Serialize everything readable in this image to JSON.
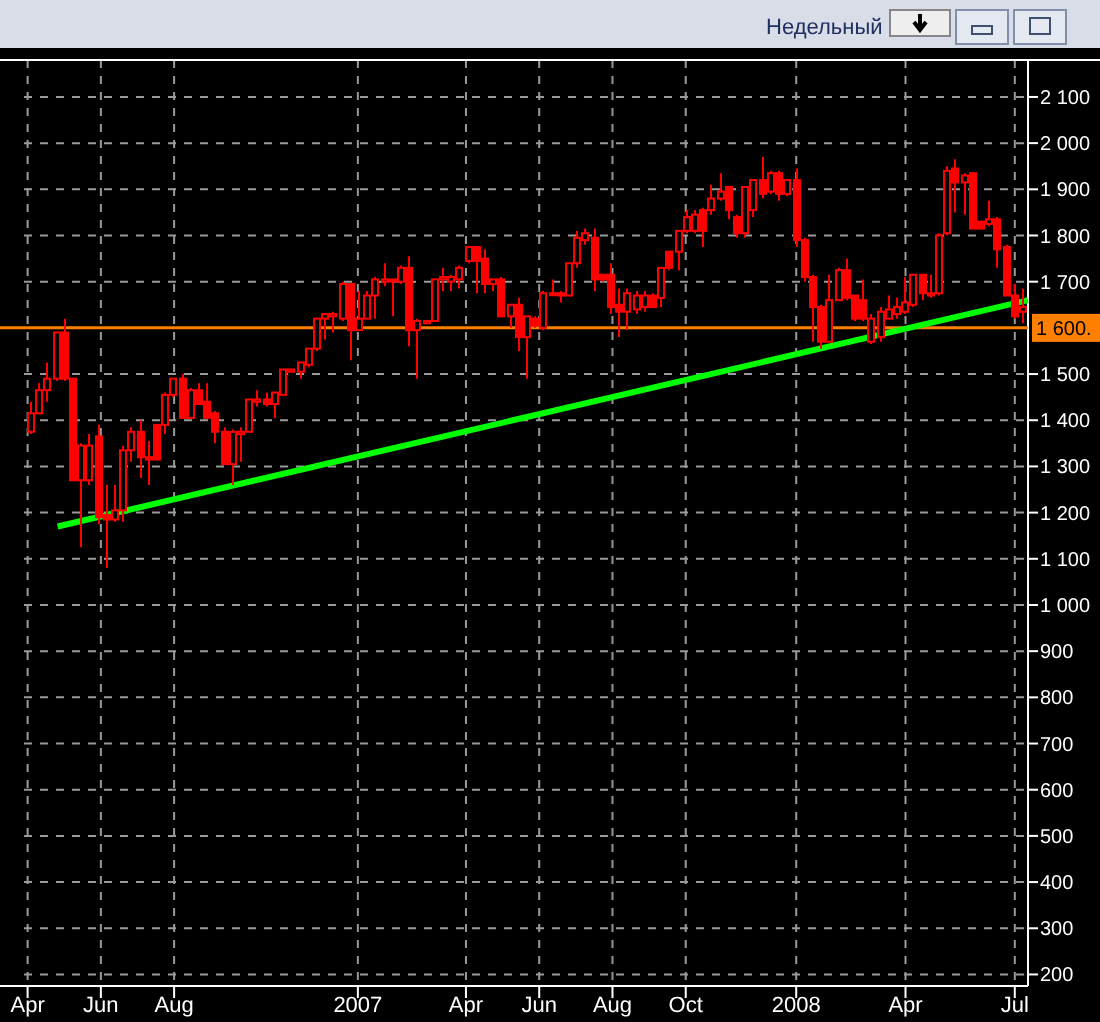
{
  "chart_data": {
    "type": "candlestick",
    "color": "#ff0000",
    "annotations": [
      "Недельный"
    ],
    "x": [
      "2006-04-03",
      "2006-04-10",
      "2006-04-17",
      "2006-04-24",
      "2006-05-01",
      "2006-05-08",
      "2006-05-15",
      "2006-05-22",
      "2006-05-29",
      "2006-06-05",
      "2006-06-12",
      "2006-06-19",
      "2006-06-26",
      "2006-07-03",
      "2006-07-10",
      "2006-07-17",
      "2006-07-24",
      "2006-07-31",
      "2006-08-07",
      "2006-08-14",
      "2006-08-21",
      "2006-08-28",
      "2006-09-04",
      "2006-09-11",
      "2006-09-18",
      "2006-09-25",
      "2006-10-02",
      "2006-10-09",
      "2006-10-16",
      "2006-10-23",
      "2006-10-30",
      "2006-11-06",
      "2006-11-13",
      "2006-11-20",
      "2006-11-27",
      "2006-12-04",
      "2006-12-11",
      "2006-12-18",
      "2006-12-25",
      "2007-01-01",
      "2007-01-08",
      "2007-01-15",
      "2007-01-22",
      "2007-01-29",
      "2007-02-05",
      "2007-02-12",
      "2007-02-19",
      "2007-02-26",
      "2007-03-05",
      "2007-03-12",
      "2007-03-19",
      "2007-03-26",
      "2007-04-02",
      "2007-04-09",
      "2007-04-16",
      "2007-04-23",
      "2007-04-30",
      "2007-05-07",
      "2007-05-14",
      "2007-05-21",
      "2007-05-28",
      "2007-06-04",
      "2007-06-11",
      "2007-06-18",
      "2007-06-25",
      "2007-07-02",
      "2007-07-09",
      "2007-07-16",
      "2007-07-23",
      "2007-07-30",
      "2007-08-06",
      "2007-08-13",
      "2007-08-20",
      "2007-08-27",
      "2007-09-03",
      "2007-09-10",
      "2007-09-17",
      "2007-09-24",
      "2007-10-01",
      "2007-10-08",
      "2007-10-15",
      "2007-10-22",
      "2007-10-29",
      "2007-11-05",
      "2007-11-12",
      "2007-11-19",
      "2007-11-26",
      "2007-12-03",
      "2007-12-10",
      "2007-12-17",
      "2007-12-24",
      "2007-12-31",
      "2008-01-07",
      "2008-01-14",
      "2008-01-21",
      "2008-01-28",
      "2008-02-04",
      "2008-02-11",
      "2008-02-18",
      "2008-02-25",
      "2008-03-03",
      "2008-03-10",
      "2008-03-17",
      "2008-03-24",
      "2008-03-31",
      "2008-04-07",
      "2008-04-14",
      "2008-04-21",
      "2008-04-28",
      "2008-05-05",
      "2008-05-12",
      "2008-05-19",
      "2008-05-26",
      "2008-06-02",
      "2008-06-09",
      "2008-06-16",
      "2008-06-23",
      "2008-06-30",
      "2008-07-07"
    ],
    "ohlc": [
      [
        1375,
        1440,
        1370,
        1415
      ],
      [
        1415,
        1480,
        1415,
        1465
      ],
      [
        1465,
        1525,
        1440,
        1490
      ],
      [
        1490,
        1590,
        1485,
        1590
      ],
      [
        1590,
        1620,
        1485,
        1490
      ],
      [
        1490,
        1490,
        1270,
        1270
      ],
      [
        1270,
        1350,
        1125,
        1345
      ],
      [
        1270,
        1370,
        1260,
        1345
      ],
      [
        1365,
        1390,
        1175,
        1190
      ],
      [
        1195,
        1260,
        1080,
        1185
      ],
      [
        1185,
        1260,
        1180,
        1205
      ],
      [
        1205,
        1345,
        1180,
        1335
      ],
      [
        1335,
        1385,
        1310,
        1375
      ],
      [
        1375,
        1400,
        1275,
        1320
      ],
      [
        1320,
        1355,
        1260,
        1315
      ],
      [
        1390,
        1390,
        1315,
        1315
      ],
      [
        1390,
        1460,
        1370,
        1455
      ],
      [
        1455,
        1490,
        1450,
        1490
      ],
      [
        1490,
        1500,
        1405,
        1405
      ],
      [
        1405,
        1470,
        1405,
        1465
      ],
      [
        1465,
        1480,
        1435,
        1435
      ],
      [
        1440,
        1480,
        1405,
        1405
      ],
      [
        1415,
        1420,
        1350,
        1375
      ],
      [
        1375,
        1385,
        1305,
        1305
      ],
      [
        1305,
        1380,
        1260,
        1375
      ],
      [
        1370,
        1385,
        1310,
        1375
      ],
      [
        1375,
        1445,
        1375,
        1445
      ],
      [
        1440,
        1465,
        1430,
        1445
      ],
      [
        1445,
        1460,
        1430,
        1435
      ],
      [
        1435,
        1460,
        1405,
        1460
      ],
      [
        1455,
        1510,
        1455,
        1510
      ],
      [
        1505,
        1510,
        1505,
        1510
      ],
      [
        1505,
        1525,
        1490,
        1525
      ],
      [
        1520,
        1555,
        1515,
        1555
      ],
      [
        1555,
        1620,
        1550,
        1620
      ],
      [
        1620,
        1630,
        1575,
        1630
      ],
      [
        1625,
        1635,
        1590,
        1630
      ],
      [
        1620,
        1700,
        1615,
        1695
      ],
      [
        1695,
        1695,
        1530,
        1595
      ],
      [
        1595,
        1680,
        1595,
        1620
      ],
      [
        1620,
        1680,
        1620,
        1670
      ],
      [
        1670,
        1710,
        1620,
        1705
      ],
      [
        1700,
        1740,
        1690,
        1705
      ],
      [
        1705,
        1705,
        1625,
        1700
      ],
      [
        1700,
        1735,
        1695,
        1730
      ],
      [
        1730,
        1755,
        1560,
        1595
      ],
      [
        1595,
        1620,
        1490,
        1615
      ],
      [
        1610,
        1615,
        1610,
        1615
      ],
      [
        1615,
        1705,
        1615,
        1705
      ],
      [
        1705,
        1730,
        1680,
        1710
      ],
      [
        1700,
        1715,
        1680,
        1710
      ],
      [
        1705,
        1735,
        1685,
        1730
      ],
      [
        1745,
        1775,
        1740,
        1775
      ],
      [
        1775,
        1775,
        1675,
        1745
      ],
      [
        1750,
        1770,
        1675,
        1695
      ],
      [
        1695,
        1705,
        1680,
        1705
      ],
      [
        1705,
        1710,
        1625,
        1625
      ],
      [
        1625,
        1650,
        1600,
        1650
      ],
      [
        1650,
        1665,
        1550,
        1580
      ],
      [
        1580,
        1625,
        1490,
        1625
      ],
      [
        1620,
        1625,
        1600,
        1605
      ],
      [
        1600,
        1680,
        1595,
        1675
      ],
      [
        1675,
        1705,
        1670,
        1675
      ],
      [
        1675,
        1680,
        1655,
        1670
      ],
      [
        1670,
        1740,
        1670,
        1740
      ],
      [
        1740,
        1810,
        1730,
        1795
      ],
      [
        1790,
        1815,
        1780,
        1805
      ],
      [
        1795,
        1815,
        1680,
        1705
      ],
      [
        1715,
        1715,
        1700,
        1705
      ],
      [
        1715,
        1740,
        1630,
        1645
      ],
      [
        1650,
        1685,
        1580,
        1635
      ],
      [
        1635,
        1685,
        1595,
        1675
      ],
      [
        1640,
        1680,
        1630,
        1670
      ],
      [
        1645,
        1680,
        1635,
        1670
      ],
      [
        1670,
        1675,
        1645,
        1645
      ],
      [
        1665,
        1730,
        1645,
        1730
      ],
      [
        1765,
        1765,
        1725,
        1730
      ],
      [
        1765,
        1810,
        1725,
        1810
      ],
      [
        1810,
        1855,
        1805,
        1840
      ],
      [
        1810,
        1855,
        1805,
        1845
      ],
      [
        1855,
        1860,
        1775,
        1810
      ],
      [
        1855,
        1910,
        1845,
        1880
      ],
      [
        1880,
        1935,
        1875,
        1895
      ],
      [
        1905,
        1905,
        1835,
        1855
      ],
      [
        1840,
        1845,
        1795,
        1805
      ],
      [
        1805,
        1905,
        1795,
        1905
      ],
      [
        1855,
        1920,
        1840,
        1920
      ],
      [
        1920,
        1970,
        1880,
        1890
      ],
      [
        1895,
        1940,
        1890,
        1935
      ],
      [
        1935,
        1940,
        1875,
        1890
      ],
      [
        1890,
        1920,
        1885,
        1920
      ],
      [
        1920,
        1945,
        1775,
        1790
      ],
      [
        1790,
        1795,
        1700,
        1710
      ],
      [
        1710,
        1715,
        1570,
        1645
      ],
      [
        1645,
        1650,
        1555,
        1570
      ],
      [
        1570,
        1715,
        1570,
        1660
      ],
      [
        1660,
        1730,
        1660,
        1725
      ],
      [
        1725,
        1750,
        1660,
        1665
      ],
      [
        1670,
        1670,
        1615,
        1620
      ],
      [
        1660,
        1705,
        1615,
        1620
      ],
      [
        1570,
        1630,
        1565,
        1620
      ],
      [
        1580,
        1645,
        1570,
        1635
      ],
      [
        1620,
        1670,
        1620,
        1640
      ],
      [
        1630,
        1665,
        1620,
        1645
      ],
      [
        1635,
        1710,
        1630,
        1655
      ],
      [
        1650,
        1715,
        1645,
        1715
      ],
      [
        1715,
        1715,
        1660,
        1675
      ],
      [
        1675,
        1715,
        1665,
        1670
      ],
      [
        1675,
        1805,
        1670,
        1800
      ],
      [
        1805,
        1950,
        1800,
        1940
      ],
      [
        1945,
        1965,
        1850,
        1915
      ],
      [
        1915,
        1935,
        1845,
        1930
      ],
      [
        1935,
        1935,
        1815,
        1815
      ],
      [
        1830,
        1830,
        1815,
        1815
      ],
      [
        1825,
        1875,
        1820,
        1835
      ],
      [
        1835,
        1840,
        1730,
        1770
      ],
      [
        1775,
        1780,
        1670,
        1670
      ],
      [
        1670,
        1695,
        1620,
        1625
      ],
      [
        1635,
        1685,
        1610,
        1645
      ]
    ],
    "series": [
      {
        "type": "line",
        "color": "#00ff00",
        "x": [
          "2006-04-26",
          "2008-07-12"
        ],
        "values": [
          1170,
          1660
        ]
      }
    ],
    "ref_lines": [
      {
        "axis": "y",
        "value": 1600,
        "label": "1 600.",
        "color": "#ff8000"
      }
    ],
    "xlim": [
      "2006-03-29",
      "2008-07-12"
    ],
    "xticks": [
      {
        "value": "2006-04-01",
        "label": "Apr"
      },
      {
        "value": "2006-06-01",
        "label": "Jun"
      },
      {
        "value": "2006-08-01",
        "label": "Aug"
      },
      {
        "value": "2007-01-01",
        "label": "2007"
      },
      {
        "value": "2007-04-01",
        "label": "Apr"
      },
      {
        "value": "2007-06-01",
        "label": "Jun"
      },
      {
        "value": "2007-08-01",
        "label": "Aug"
      },
      {
        "value": "2007-10-01",
        "label": "Oct"
      },
      {
        "value": "2008-01-01",
        "label": "2008"
      },
      {
        "value": "2008-04-01",
        "label": "Apr"
      },
      {
        "value": "2008-07-01",
        "label": "Jul"
      }
    ],
    "ylim": [
      175,
      2180
    ],
    "yticks": [
      {
        "value": 2100,
        "label": "2 100"
      },
      {
        "value": 2000,
        "label": "2 000"
      },
      {
        "value": 1900,
        "label": "1 900"
      },
      {
        "value": 1800,
        "label": "1 800"
      },
      {
        "value": 1700,
        "label": "1 700"
      },
      {
        "value": 1500,
        "label": "1 500"
      },
      {
        "value": 1400,
        "label": "1 400"
      },
      {
        "value": 1300,
        "label": "1 300"
      },
      {
        "value": 1200,
        "label": "1 200"
      },
      {
        "value": 1100,
        "label": "1 100"
      },
      {
        "value": 1000,
        "label": "1 000"
      },
      900,
      800,
      700,
      600,
      500,
      400,
      300,
      200
    ],
    "grid": true
  }
}
